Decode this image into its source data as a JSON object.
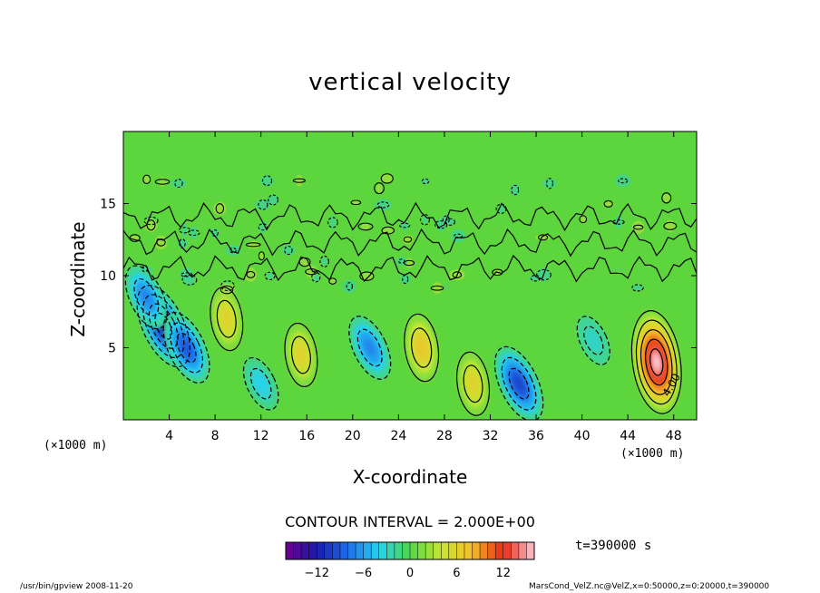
{
  "chart_data": {
    "type": "heatmap",
    "title": "vertical velocity",
    "xlabel": "X-coordinate",
    "ylabel": "Z-coordinate",
    "x_unit_label": "(×1000 m)",
    "x_ticks": [
      4,
      8,
      12,
      16,
      20,
      24,
      28,
      32,
      36,
      40,
      44,
      48
    ],
    "y_ticks": [
      5,
      10,
      15
    ],
    "xlim": [
      0,
      50
    ],
    "ylim": [
      0,
      20
    ],
    "contour_interval_text": "CONTOUR INTERVAL = 2.000E+00",
    "contour_label": "4.00",
    "colorbar": {
      "range": [
        -16,
        16
      ],
      "ticks": [
        -12,
        -6,
        0,
        6,
        12
      ]
    },
    "time_text": "t=390000 s",
    "cells": [
      {
        "x": 3.5,
        "z": 6.5,
        "v": -12
      },
      {
        "x": 5.5,
        "z": 5.0,
        "v": -9
      },
      {
        "x": 2.0,
        "z": 8.5,
        "v": -7
      },
      {
        "x": 9.0,
        "z": 7.0,
        "v": 6
      },
      {
        "x": 15.5,
        "z": 4.5,
        "v": 6
      },
      {
        "x": 21.5,
        "z": 5.0,
        "v": -7
      },
      {
        "x": 26.0,
        "z": 5.0,
        "v": 7
      },
      {
        "x": 30.5,
        "z": 2.5,
        "v": 6
      },
      {
        "x": 34.5,
        "z": 2.5,
        "v": -10
      },
      {
        "x": 41.0,
        "z": 5.5,
        "v": -3
      },
      {
        "x": 46.5,
        "z": 4.0,
        "v": 16
      },
      {
        "x": 12.0,
        "z": 2.5,
        "v": -4
      }
    ]
  },
  "footer": {
    "left": "/usr/bin/gpview   2008-11-20",
    "right": "MarsCond_VelZ.nc@VelZ,x=0:50000,z=0:20000,t=390000"
  }
}
